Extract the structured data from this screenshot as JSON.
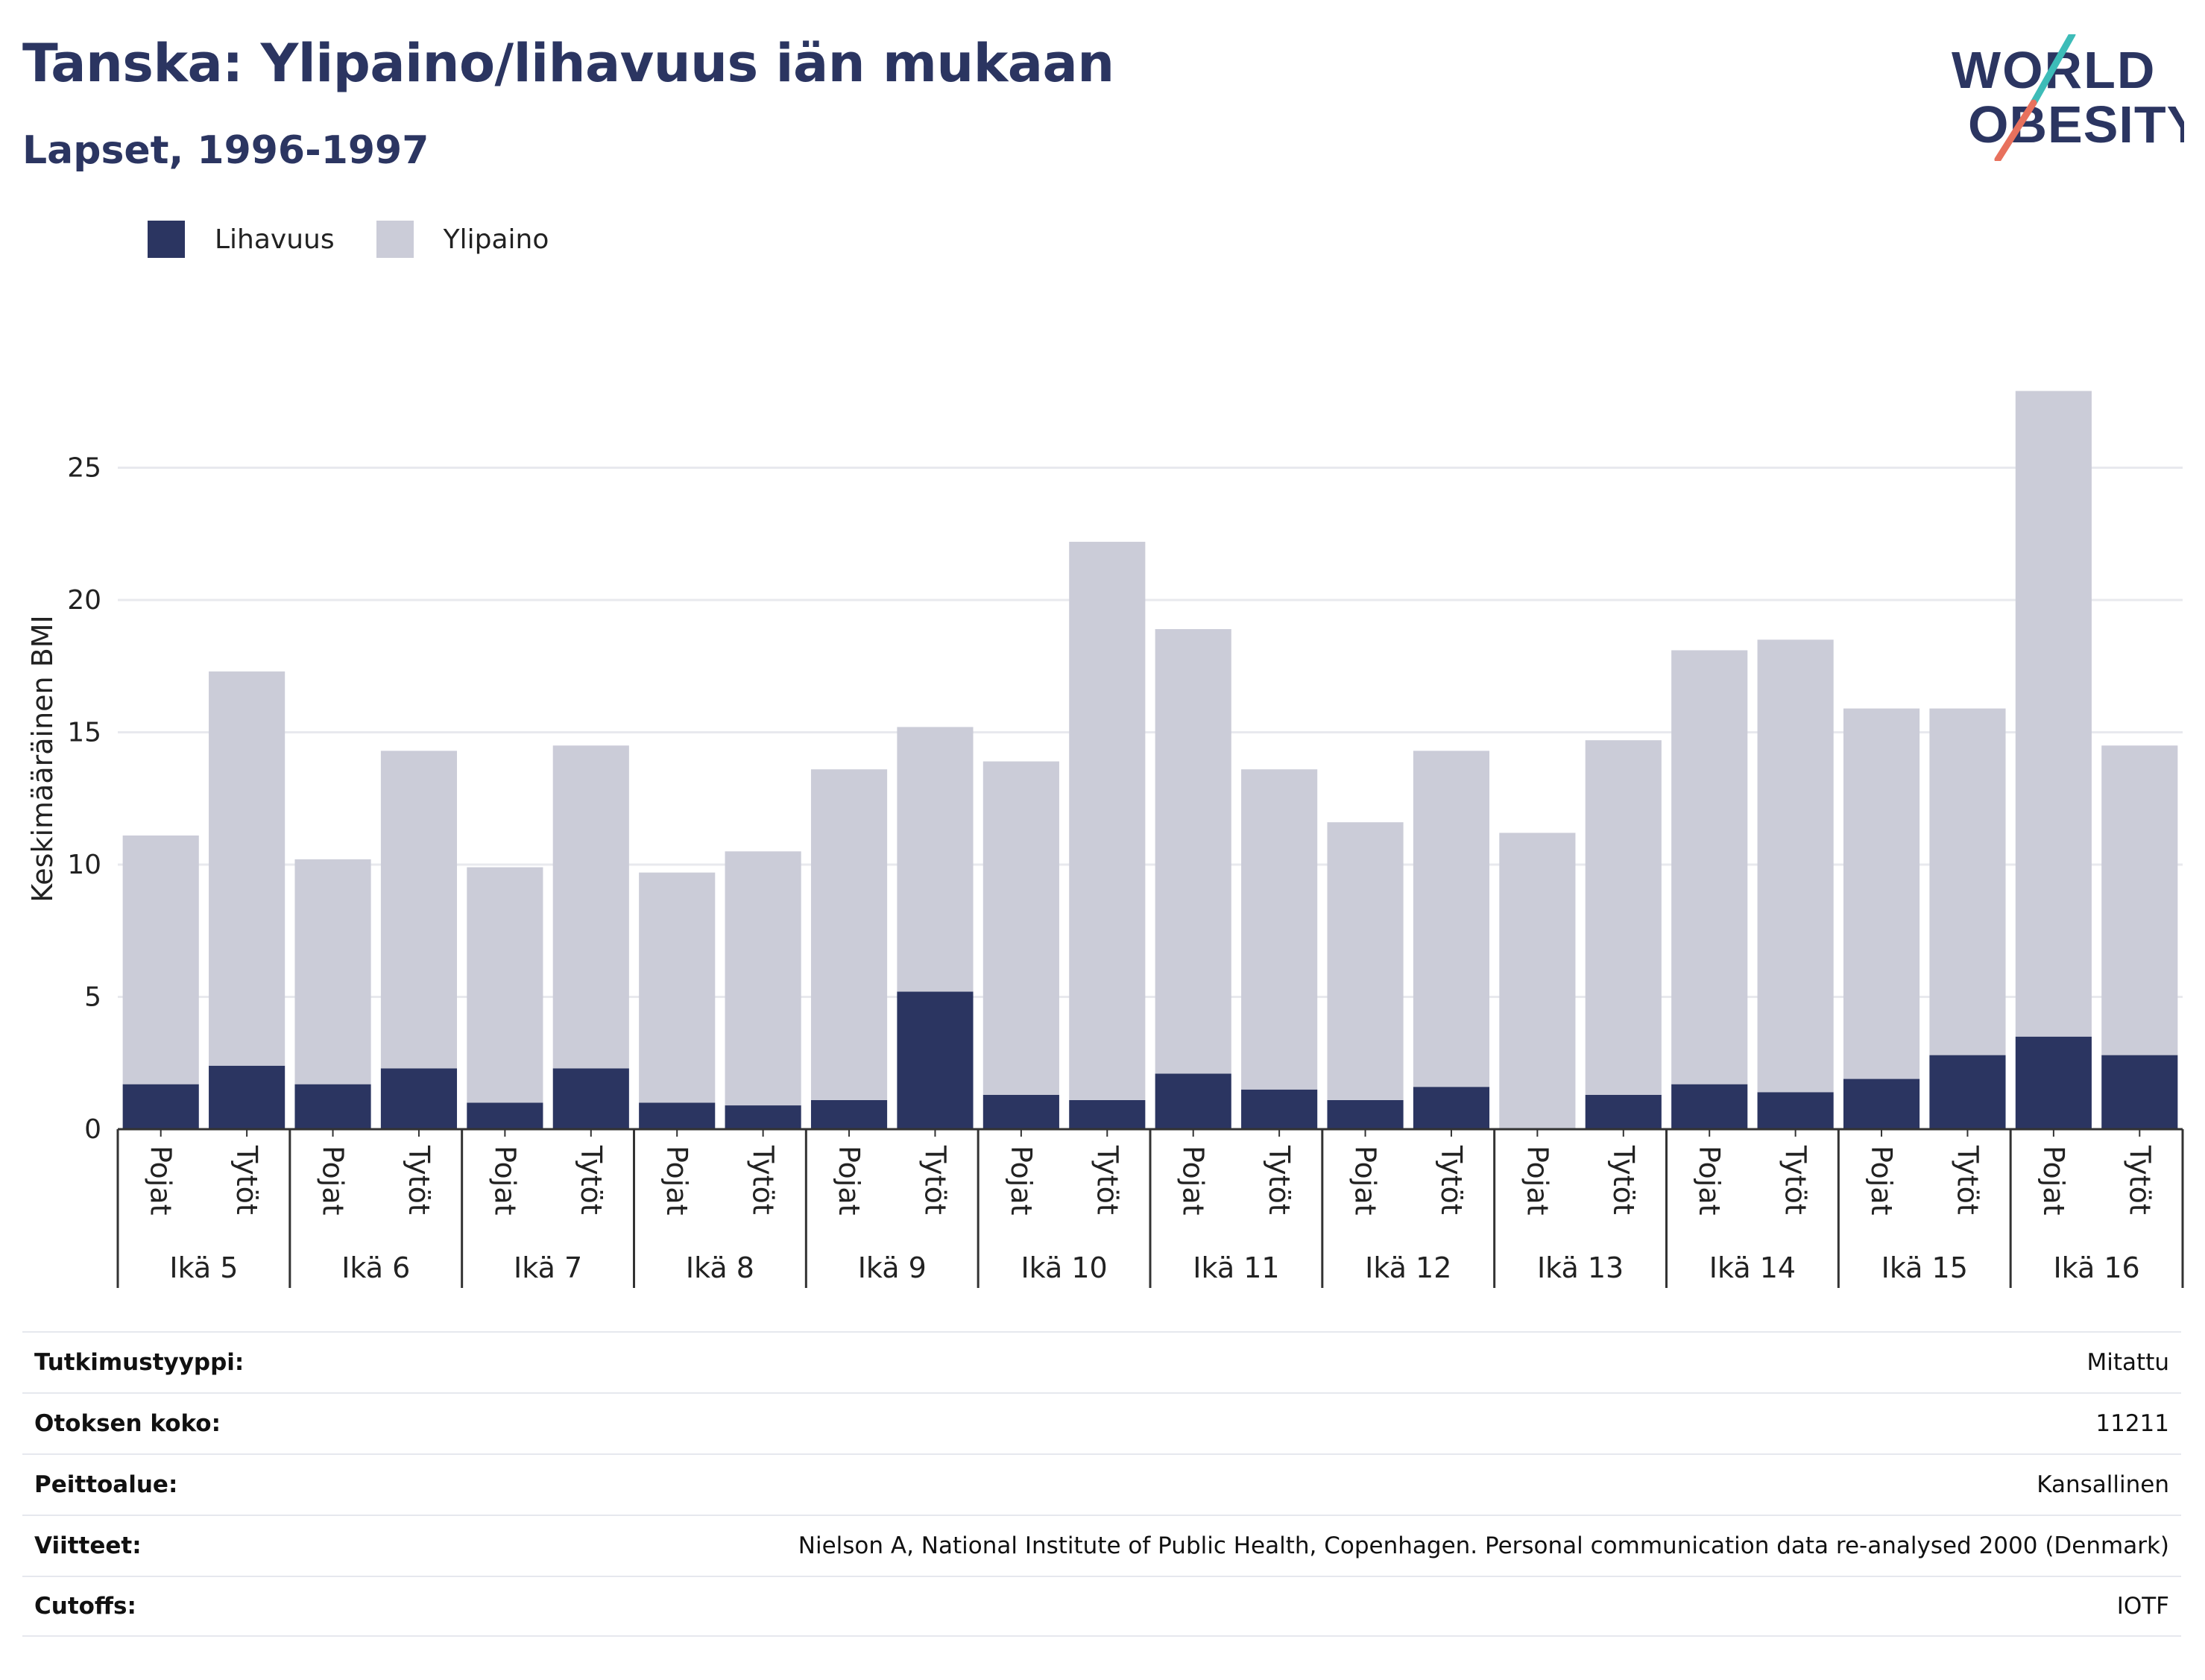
{
  "header": {
    "title": "Tanska: Ylipaino/lihavuus iän mukaan",
    "subtitle": "Lapset, 1996-1997"
  },
  "logo": {
    "line1": "WORLD",
    "line2": "OBESITY"
  },
  "colors": {
    "obesity": "#2b3561",
    "overweight": "#cbccd8",
    "title": "#2b3561",
    "logo_slash_teal": "#3dbcb8",
    "logo_slash_coral": "#e8715d"
  },
  "legend": [
    {
      "label": "Lihavuus",
      "color": "#2b3561"
    },
    {
      "label": "Ylipaino",
      "color": "#cbccd8"
    }
  ],
  "chart_data": {
    "type": "bar",
    "stacked": true,
    "ylabel": "Keskimääräinen BMI",
    "ylim": [
      0,
      28
    ],
    "yticks": [
      0,
      5,
      10,
      15,
      20,
      25
    ],
    "grid": true,
    "groups": [
      "Ikä 5",
      "Ikä 6",
      "Ikä 7",
      "Ikä 8",
      "Ikä 9",
      "Ikä 10",
      "Ikä 11",
      "Ikä 12",
      "Ikä 13",
      "Ikä 14",
      "Ikä 15",
      "Ikä 16"
    ],
    "subcategories": [
      "Pojat",
      "Tytöt"
    ],
    "series": [
      {
        "name": "Lihavuus",
        "values": [
          1.7,
          2.4,
          1.7,
          2.3,
          1.0,
          2.3,
          1.0,
          0.9,
          1.1,
          5.2,
          1.3,
          1.1,
          2.1,
          1.5,
          1.1,
          1.6,
          0.0,
          1.3,
          1.7,
          1.4,
          1.9,
          2.8,
          3.5,
          2.8
        ]
      },
      {
        "name": "Ylipaino",
        "values": [
          9.4,
          14.9,
          8.5,
          12.0,
          8.9,
          12.2,
          8.7,
          9.6,
          12.5,
          10.0,
          12.6,
          21.1,
          16.8,
          12.1,
          10.5,
          12.7,
          11.2,
          13.4,
          16.4,
          17.1,
          14.0,
          13.1,
          24.4,
          11.7
        ]
      }
    ]
  },
  "info_table": [
    {
      "label": "Tutkimustyyppi:",
      "value": "Mitattu"
    },
    {
      "label": "Otoksen koko:",
      "value": "11211"
    },
    {
      "label": "Peittoalue:",
      "value": "Kansallinen"
    },
    {
      "label": "Viitteet:",
      "value": "Nielson A, National Institute of Public Health, Copenhagen. Personal communication data re-analysed 2000 (Denmark)"
    },
    {
      "label": "Cutoffs:",
      "value": "IOTF"
    }
  ]
}
